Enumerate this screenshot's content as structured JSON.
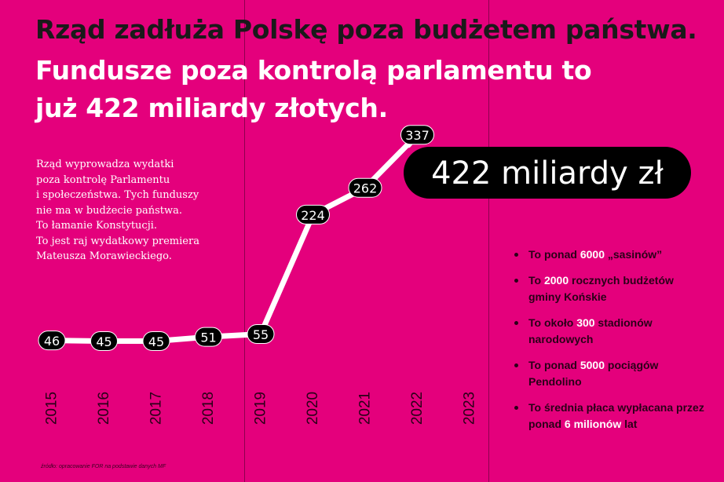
{
  "headline": {
    "line1": "Rząd zadłuża Polskę poza budżetem państwa.",
    "line2": "Fundusze poza kontrolą parlamentu to",
    "line3": "już 422 miliardy złotych."
  },
  "intro_lines": [
    "Rząd wyprowadza wydatki",
    "poza kontrolę Parlamentu",
    "i społeczeństwa. Tych funduszy",
    "nie ma w budżecie państwa.",
    "To łamanie Konstytucji.",
    "To jest raj wydatkowy premiera",
    "Mateusza Morawieckiego."
  ],
  "bullets": [
    {
      "before": "To ponad ",
      "highlight": "6000",
      "after": " „sasinów”"
    },
    {
      "before": "To ",
      "highlight": "2000",
      "after": " rocznych budżetów gminy Końskie"
    },
    {
      "before": "To około ",
      "highlight": "300",
      "after": " stadionów narodowych"
    },
    {
      "before": "To ponad ",
      "highlight": "5000",
      "after": " pociągów Pendolino"
    },
    {
      "before": "To średnia płaca wypłacana przez ponad ",
      "highlight": "6 milionów",
      "after": " lat"
    }
  ],
  "source": "źródło: opracowanie FOR na podstawie danych MF",
  "colors": {
    "background": "#e4007c",
    "line": "#ffffff",
    "bubble": "#000000",
    "highlight": "#ffffff"
  },
  "chart_data": {
    "type": "line",
    "x": [
      "2015",
      "2016",
      "2017",
      "2018",
      "2019",
      "2020",
      "2021",
      "2022",
      "2023"
    ],
    "values": [
      46,
      45,
      45,
      51,
      55,
      224,
      262,
      337,
      422
    ],
    "data_labels": [
      "46",
      "45",
      "45",
      "51",
      "55",
      "224",
      "262",
      "337",
      "422 miliardy zł"
    ],
    "grid": false,
    "legend": "none"
  }
}
